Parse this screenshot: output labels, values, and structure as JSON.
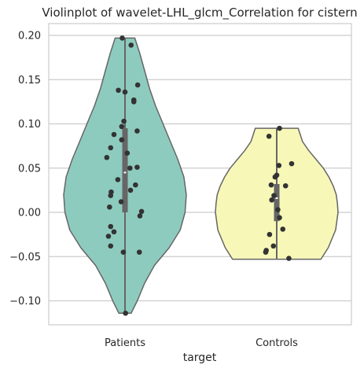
{
  "chart_data": {
    "type": "violin",
    "title": "Violinplot of wavelet-LHL_glcm_Correlation for cistern",
    "xlabel": "target",
    "ylabel": "",
    "categories": [
      "Patients",
      "Controls"
    ],
    "ylim": [
      -0.13,
      0.215
    ],
    "yticks": [
      -0.1,
      -0.05,
      0.0,
      0.05,
      0.1,
      0.15,
      0.2
    ],
    "ytick_labels": [
      "−0.10",
      "−0.05",
      "0.00",
      "0.05",
      "0.10",
      "0.15",
      "0.20"
    ],
    "grid": true,
    "colors": {
      "Patients": "#8ecbbf",
      "Controls": "#f7f7b8",
      "outline": "#666666",
      "points": "#333333",
      "grid": "#cccccc"
    },
    "violins": [
      {
        "category": "Patients",
        "min": -0.114,
        "max": 0.197,
        "q1": 0.0,
        "median": 0.045,
        "q3": 0.095,
        "density": [
          [
            -0.114,
            0.1
          ],
          [
            -0.1,
            0.2
          ],
          [
            -0.08,
            0.32
          ],
          [
            -0.06,
            0.48
          ],
          [
            -0.04,
            0.72
          ],
          [
            -0.02,
            0.9
          ],
          [
            0.0,
            0.98
          ],
          [
            0.02,
            1.0
          ],
          [
            0.04,
            0.96
          ],
          [
            0.06,
            0.86
          ],
          [
            0.08,
            0.74
          ],
          [
            0.1,
            0.62
          ],
          [
            0.12,
            0.5
          ],
          [
            0.14,
            0.4
          ],
          [
            0.16,
            0.32
          ],
          [
            0.18,
            0.24
          ],
          [
            0.197,
            0.16
          ]
        ],
        "points": [
          {
            "x": -0.05,
            "y": 0.197
          },
          {
            "x": 0.11,
            "y": 0.189
          },
          {
            "x": 0.23,
            "y": 0.144
          },
          {
            "x": -0.12,
            "y": 0.138
          },
          {
            "x": 0.0,
            "y": 0.136
          },
          {
            "x": 0.16,
            "y": 0.127
          },
          {
            "x": 0.16,
            "y": 0.125
          },
          {
            "x": -0.02,
            "y": 0.103
          },
          {
            "x": -0.06,
            "y": 0.097
          },
          {
            "x": 0.22,
            "y": 0.092
          },
          {
            "x": -0.2,
            "y": 0.088
          },
          {
            "x": -0.06,
            "y": 0.082
          },
          {
            "x": -0.26,
            "y": 0.073
          },
          {
            "x": 0.04,
            "y": 0.067
          },
          {
            "x": -0.33,
            "y": 0.062
          },
          {
            "x": 0.22,
            "y": 0.051
          },
          {
            "x": 0.09,
            "y": 0.05
          },
          {
            "x": -0.13,
            "y": 0.037
          },
          {
            "x": 0.19,
            "y": 0.031
          },
          {
            "x": 0.1,
            "y": 0.025
          },
          {
            "x": -0.25,
            "y": 0.023
          },
          {
            "x": -0.26,
            "y": 0.019
          },
          {
            "x": -0.07,
            "y": 0.012
          },
          {
            "x": -0.28,
            "y": 0.006
          },
          {
            "x": 0.3,
            "y": 0.001
          },
          {
            "x": 0.27,
            "y": -0.004
          },
          {
            "x": -0.26,
            "y": -0.016
          },
          {
            "x": -0.2,
            "y": -0.022
          },
          {
            "x": -0.3,
            "y": -0.027
          },
          {
            "x": -0.26,
            "y": -0.038
          },
          {
            "x": -0.03,
            "y": -0.045
          },
          {
            "x": 0.26,
            "y": -0.045
          },
          {
            "x": 0.01,
            "y": -0.114
          }
        ]
      },
      {
        "category": "Controls",
        "min": -0.053,
        "max": 0.095,
        "q1": -0.01,
        "median": 0.016,
        "q3": 0.032,
        "density": [
          [
            -0.053,
            0.72
          ],
          [
            -0.04,
            0.84
          ],
          [
            -0.02,
            0.96
          ],
          [
            0.0,
            1.0
          ],
          [
            0.01,
            0.99
          ],
          [
            0.02,
            0.97
          ],
          [
            0.03,
            0.92
          ],
          [
            0.04,
            0.85
          ],
          [
            0.05,
            0.76
          ],
          [
            0.06,
            0.64
          ],
          [
            0.07,
            0.52
          ],
          [
            0.08,
            0.42
          ],
          [
            0.095,
            0.35
          ]
        ],
        "points": [
          {
            "x": 0.05,
            "y": 0.095
          },
          {
            "x": -0.14,
            "y": 0.086
          },
          {
            "x": 0.27,
            "y": 0.055
          },
          {
            "x": 0.04,
            "y": 0.053
          },
          {
            "x": 0.0,
            "y": 0.042
          },
          {
            "x": -0.03,
            "y": 0.04
          },
          {
            "x": -0.1,
            "y": 0.031
          },
          {
            "x": 0.16,
            "y": 0.03
          },
          {
            "x": -0.05,
            "y": 0.019
          },
          {
            "x": -0.09,
            "y": 0.014
          },
          {
            "x": 0.02,
            "y": 0.003
          },
          {
            "x": 0.05,
            "y": -0.006
          },
          {
            "x": 0.11,
            "y": -0.019
          },
          {
            "x": -0.13,
            "y": -0.025
          },
          {
            "x": -0.06,
            "y": -0.038
          },
          {
            "x": -0.19,
            "y": -0.043
          },
          {
            "x": -0.2,
            "y": -0.045
          },
          {
            "x": 0.22,
            "y": -0.052
          }
        ]
      }
    ]
  }
}
